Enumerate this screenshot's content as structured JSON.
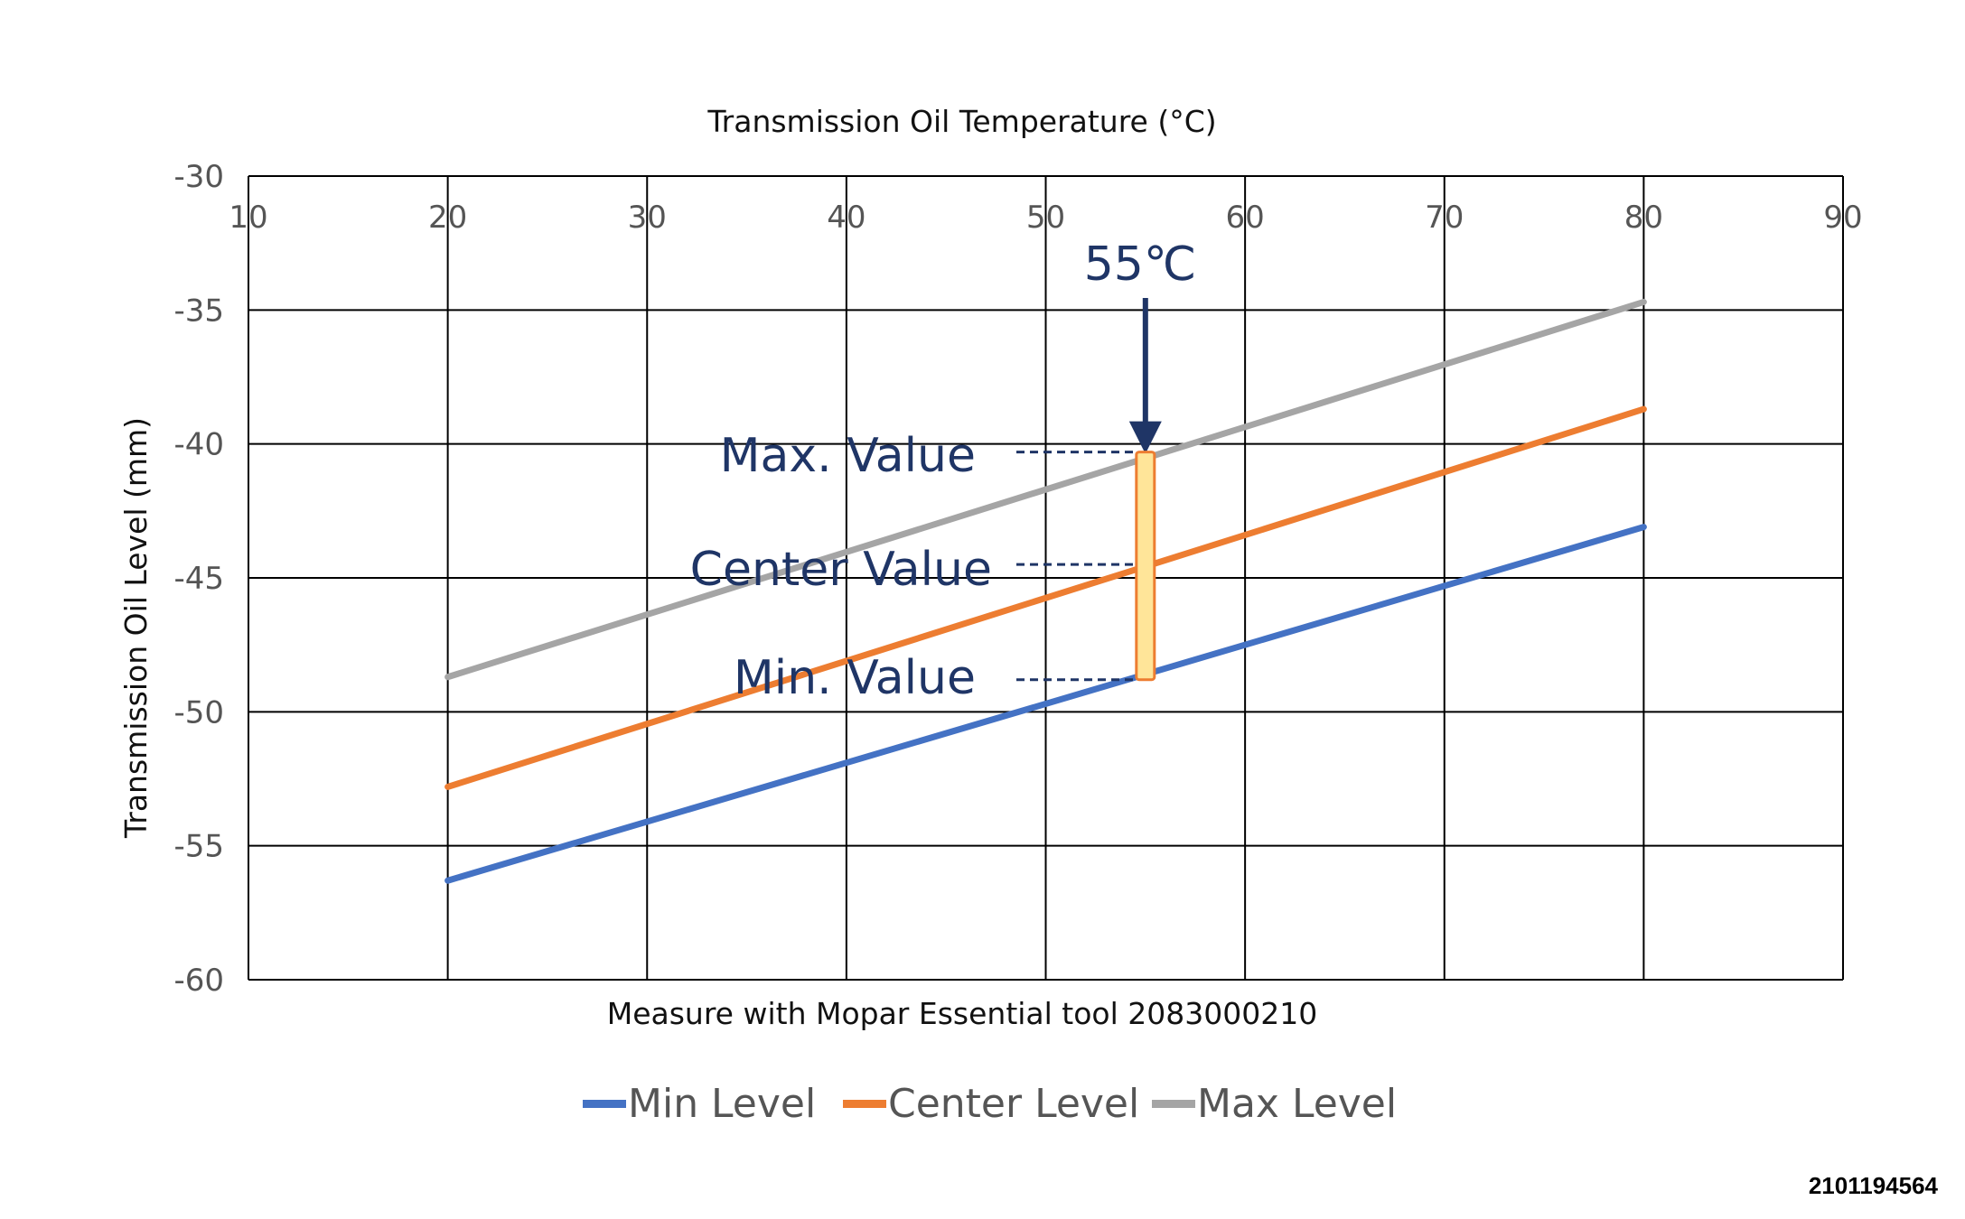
{
  "chart_data": {
    "type": "line",
    "title": "Transmission Oil Temperature (°C)",
    "xlabel": "Transmission Oil Temperature (°C)",
    "ylabel": "Transmission Oil Level (mm)",
    "xlim": [
      10,
      90
    ],
    "ylim": [
      -60,
      -30
    ],
    "x_ticks": [
      "10",
      "20",
      "30",
      "40",
      "50",
      "60",
      "70",
      "80",
      "90"
    ],
    "y_ticks": [
      "-30",
      "-35",
      "-40",
      "-45",
      "-50",
      "-55",
      "-60"
    ],
    "x": [
      20,
      80
    ],
    "series": [
      {
        "name": "Min Level",
        "color": "#4472c4",
        "values": [
          -56.3,
          -43.1
        ]
      },
      {
        "name": "Center Level",
        "color": "#ed7d31",
        "values": [
          -52.8,
          -38.7
        ]
      },
      {
        "name": "Max Level",
        "color": "#a5a5a5",
        "values": [
          -48.7,
          -34.7
        ]
      }
    ],
    "grid": true,
    "legend": "bottom",
    "annotations": {
      "marker_label": "55℃",
      "marker_x": 55,
      "range_bar": {
        "x": 55,
        "min": -48.8,
        "center": -44.5,
        "max": -40.3
      },
      "max_label": "Max. Value",
      "center_label": "Center Value",
      "min_label": "Min. Value",
      "footnote": "Measure with Mopar Essential tool 2083000210"
    }
  },
  "figure_id": "2101194564"
}
